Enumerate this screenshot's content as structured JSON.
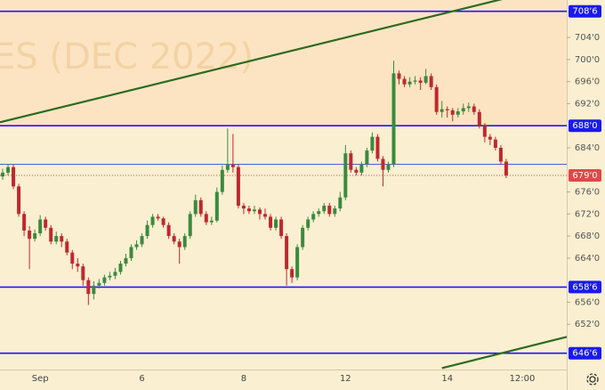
{
  "chart_data": {
    "type": "candlestick",
    "watermark": "ES (DEC 2022)",
    "categories": [
      null,
      null,
      null,
      null,
      null,
      null,
      null,
      "Sep",
      null,
      null,
      null,
      null,
      null,
      null,
      null,
      null,
      null,
      null,
      null,
      null,
      null,
      null,
      null,
      null,
      null,
      null,
      "6",
      null,
      null,
      null,
      null,
      null,
      null,
      null,
      null,
      null,
      null,
      null,
      null,
      null,
      null,
      null,
      null,
      null,
      null,
      "8",
      null,
      null,
      null,
      null,
      null,
      null,
      null,
      null,
      null,
      null,
      null,
      null,
      null,
      null,
      null,
      null,
      null,
      null,
      "12",
      null,
      null,
      null,
      null,
      null,
      null,
      null,
      null,
      null,
      null,
      null,
      null,
      null,
      null,
      null,
      null,
      null,
      null,
      "14",
      null,
      null,
      null,
      null,
      null,
      null,
      null,
      null,
      null,
      null,
      null,
      null,
      null,
      "12:00"
    ],
    "open": [
      678.8,
      679.5,
      680.5,
      677,
      672,
      669,
      667.5,
      668.5,
      671,
      669.5,
      667,
      668,
      667,
      665,
      663,
      662.5,
      660,
      657.5,
      659,
      659.5,
      660.5,
      660.8,
      661.5,
      663,
      664,
      666,
      666.5,
      668,
      670,
      671.5,
      671.2,
      670,
      668,
      667,
      666,
      668,
      672,
      674.5,
      672,
      670.5,
      670.8,
      676,
      680,
      681,
      680.5,
      673.5,
      673,
      672.5,
      672.8,
      672,
      671.5,
      669.5,
      671,
      668,
      662,
      660.5,
      666,
      669.5,
      671,
      672,
      672.5,
      673.5,
      672,
      673,
      675,
      683,
      680,
      679.5,
      681,
      683.5,
      686,
      682,
      680,
      681,
      697.5,
      696.5,
      695.5,
      696,
      696.2,
      695.8,
      697,
      695,
      690.5,
      691,
      690.8,
      690,
      690.6,
      691.2,
      691.5,
      690.5,
      688,
      686,
      685.5,
      684,
      681.5,
      null,
      null,
      null
    ],
    "high": [
      680.2,
      681.0,
      681.0,
      677.5,
      672.5,
      669.8,
      669.2,
      671.8,
      671.5,
      670.0,
      668.8,
      668.5,
      667.5,
      665.5,
      664.0,
      663.0,
      660.5,
      659.8,
      660.2,
      661.0,
      661.5,
      662.2,
      663.5,
      664.8,
      666.5,
      667.2,
      668.5,
      670.8,
      672.0,
      672.0,
      671.5,
      670.5,
      668.5,
      667.5,
      668.5,
      672.5,
      675.5,
      675.0,
      672.5,
      671.5,
      676.8,
      680.8,
      687.5,
      686.5,
      681.0,
      674.0,
      673.5,
      673.5,
      673.2,
      673.0,
      672.0,
      671.5,
      671.5,
      668.5,
      662.5,
      666.5,
      670.0,
      671.5,
      672.5,
      673.0,
      674.0,
      674.0,
      673.5,
      676.0,
      684.5,
      683.5,
      680.5,
      681.5,
      684.0,
      686.8,
      686.5,
      682.5,
      681.5,
      699.8,
      698.0,
      697.0,
      696.8,
      697.0,
      696.8,
      698.3,
      697.5,
      695.5,
      692.5,
      691.5,
      691.2,
      691.2,
      692.0,
      692.2,
      692.0,
      691.0,
      688.5,
      686.5,
      686.0,
      684.5,
      682.0,
      null,
      null,
      null
    ],
    "low": [
      678.2,
      679.0,
      676.5,
      671.5,
      668.0,
      662.0,
      667.0,
      668.0,
      669.0,
      666.5,
      666.5,
      666.0,
      664.5,
      662.0,
      661.5,
      659.0,
      655.5,
      656.5,
      658.5,
      659.0,
      660.0,
      660.2,
      661.0,
      662.5,
      663.5,
      665.5,
      666.0,
      667.5,
      669.5,
      670.8,
      669.5,
      667.5,
      666.5,
      663.0,
      665.5,
      667.5,
      671.5,
      671.5,
      670.0,
      670.0,
      670.5,
      675.5,
      679.5,
      679.5,
      673.0,
      672.0,
      672.0,
      672.0,
      671.0,
      671.0,
      669.0,
      669.0,
      667.5,
      659.0,
      659.5,
      660.0,
      665.5,
      669.0,
      670.5,
      671.5,
      672.0,
      671.5,
      671.5,
      672.5,
      674.5,
      679.5,
      679.0,
      679.0,
      680.5,
      683.0,
      681.5,
      677.0,
      679.5,
      680.5,
      695.5,
      695.0,
      695.0,
      695.5,
      694.5,
      695.5,
      694.5,
      690.0,
      689.5,
      689.5,
      688.8,
      689.5,
      690.0,
      690.5,
      690.0,
      687.5,
      685.0,
      684.5,
      683.5,
      681.0,
      678.5,
      null,
      null,
      null
    ],
    "close": [
      679.5,
      680.5,
      677,
      672,
      669,
      667.5,
      668.5,
      671,
      669.5,
      667,
      668,
      667,
      665,
      663,
      662.5,
      660,
      657.5,
      659,
      659.5,
      660.5,
      660.8,
      661.5,
      663,
      664,
      666,
      666.5,
      668,
      670,
      671.5,
      671.2,
      670,
      668,
      667,
      666,
      668,
      672,
      674.5,
      672,
      670.5,
      670.8,
      676,
      680,
      681,
      680.5,
      673.5,
      673,
      672.5,
      672.8,
      672,
      671.5,
      669.5,
      671,
      668,
      662,
      660.5,
      666,
      669.5,
      671,
      672,
      672.5,
      673.5,
      672,
      673,
      675,
      683,
      680,
      679.5,
      681,
      683.5,
      686,
      682,
      680,
      681,
      697.5,
      696.5,
      695.5,
      696,
      696.2,
      695.8,
      697,
      695,
      690.5,
      691,
      690.8,
      690,
      690.6,
      691.2,
      691.5,
      690.5,
      688,
      686,
      685.5,
      684,
      681.5,
      679,
      null,
      null,
      null
    ],
    "up_color": "#3b8a3e",
    "down_color": "#c0282e",
    "ylim": [
      643.8,
      710.8
    ],
    "yticks": [
      {
        "value": 704,
        "label": "704'0"
      },
      {
        "value": 700,
        "label": "700'0"
      },
      {
        "value": 696,
        "label": "696'0"
      },
      {
        "value": 692,
        "label": "692'0"
      },
      {
        "value": 684,
        "label": "684'0"
      },
      {
        "value": 676,
        "label": "676'0"
      },
      {
        "value": 672,
        "label": "672'0"
      },
      {
        "value": 668,
        "label": "668'0"
      },
      {
        "value": 664,
        "label": "664'0"
      },
      {
        "value": 656,
        "label": "656'0"
      },
      {
        "value": 652,
        "label": "652'0"
      }
    ],
    "grid": false,
    "levels": [
      {
        "value": 708.75,
        "label": "708'6",
        "color": "#1a1aee",
        "width": 1.6
      },
      {
        "value": 688,
        "label": "688'0",
        "color": "#1a1aee",
        "width": 1.6,
        "shade_above": "#fce4c3"
      },
      {
        "value": 681,
        "color": "#3344ee",
        "width": 0.8
      },
      {
        "value": 658.75,
        "label": "658'6",
        "color": "#1a1aee",
        "width": 1.6
      },
      {
        "value": 646.75,
        "label": "646'6",
        "color": "#1a1aee",
        "width": 1.6
      },
      {
        "value": 679,
        "label": "679'0",
        "color": "#e04848",
        "width": 1,
        "dashed": true
      }
    ],
    "trendlines": [
      {
        "points": [
          [
            0,
            688.75
          ],
          [
            92,
            710.66
          ]
        ],
        "color": "#2d6a1f",
        "extend": "both"
      },
      {
        "points": [
          [
            82,
            644.05
          ],
          [
            97,
            647.7
          ]
        ],
        "color": "#2d6a1f",
        "extend": "right"
      }
    ]
  }
}
